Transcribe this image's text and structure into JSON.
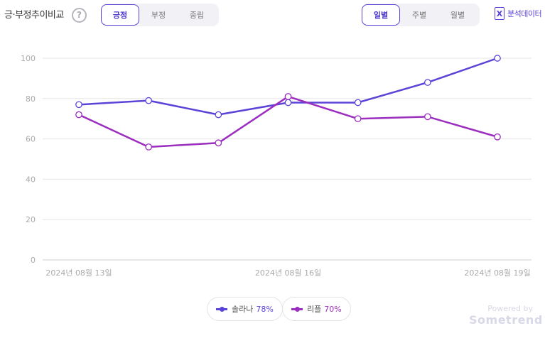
{
  "header": {
    "title": "긍·부정추이비교",
    "help_symbol": "?"
  },
  "sentiment_tabs": [
    {
      "label": "긍정",
      "active": true
    },
    {
      "label": "부정",
      "active": false
    },
    {
      "label": "중립",
      "active": false
    }
  ],
  "period_tabs": [
    {
      "label": "일별",
      "active": true
    },
    {
      "label": "주별",
      "active": false
    },
    {
      "label": "월별",
      "active": false
    }
  ],
  "export": {
    "icon": "excel-icon",
    "icon_letter": "X",
    "label": "분석데이터"
  },
  "colors": {
    "accent": "#5a40d6",
    "series1": "#5a44d8",
    "series2": "#9b2dbf",
    "grid": "#e6e6e6"
  },
  "chart_data": {
    "type": "line",
    "x": [
      "2024-08-13",
      "2024-08-14",
      "2024-08-15",
      "2024-08-16",
      "2024-08-17",
      "2024-08-18",
      "2024-08-19"
    ],
    "x_tick_labels": [
      "2024년 08월 13일",
      "",
      "",
      "2024년 08월 16일",
      "",
      "",
      "2024년 08월 19일"
    ],
    "ylim": [
      0,
      100
    ],
    "yticks": [
      0,
      20,
      40,
      60,
      80,
      100
    ],
    "grid": true,
    "legend_position": "bottom",
    "series": [
      {
        "name": "솔라나",
        "values": [
          77,
          79,
          72,
          78,
          78,
          88,
          100
        ],
        "legend_pct": "78%"
      },
      {
        "name": "리플",
        "values": [
          72,
          56,
          58,
          81,
          70,
          71,
          61
        ],
        "legend_pct": "70%"
      }
    ]
  },
  "branding": {
    "powered_by": "Powered by",
    "name": "Sometrend"
  }
}
